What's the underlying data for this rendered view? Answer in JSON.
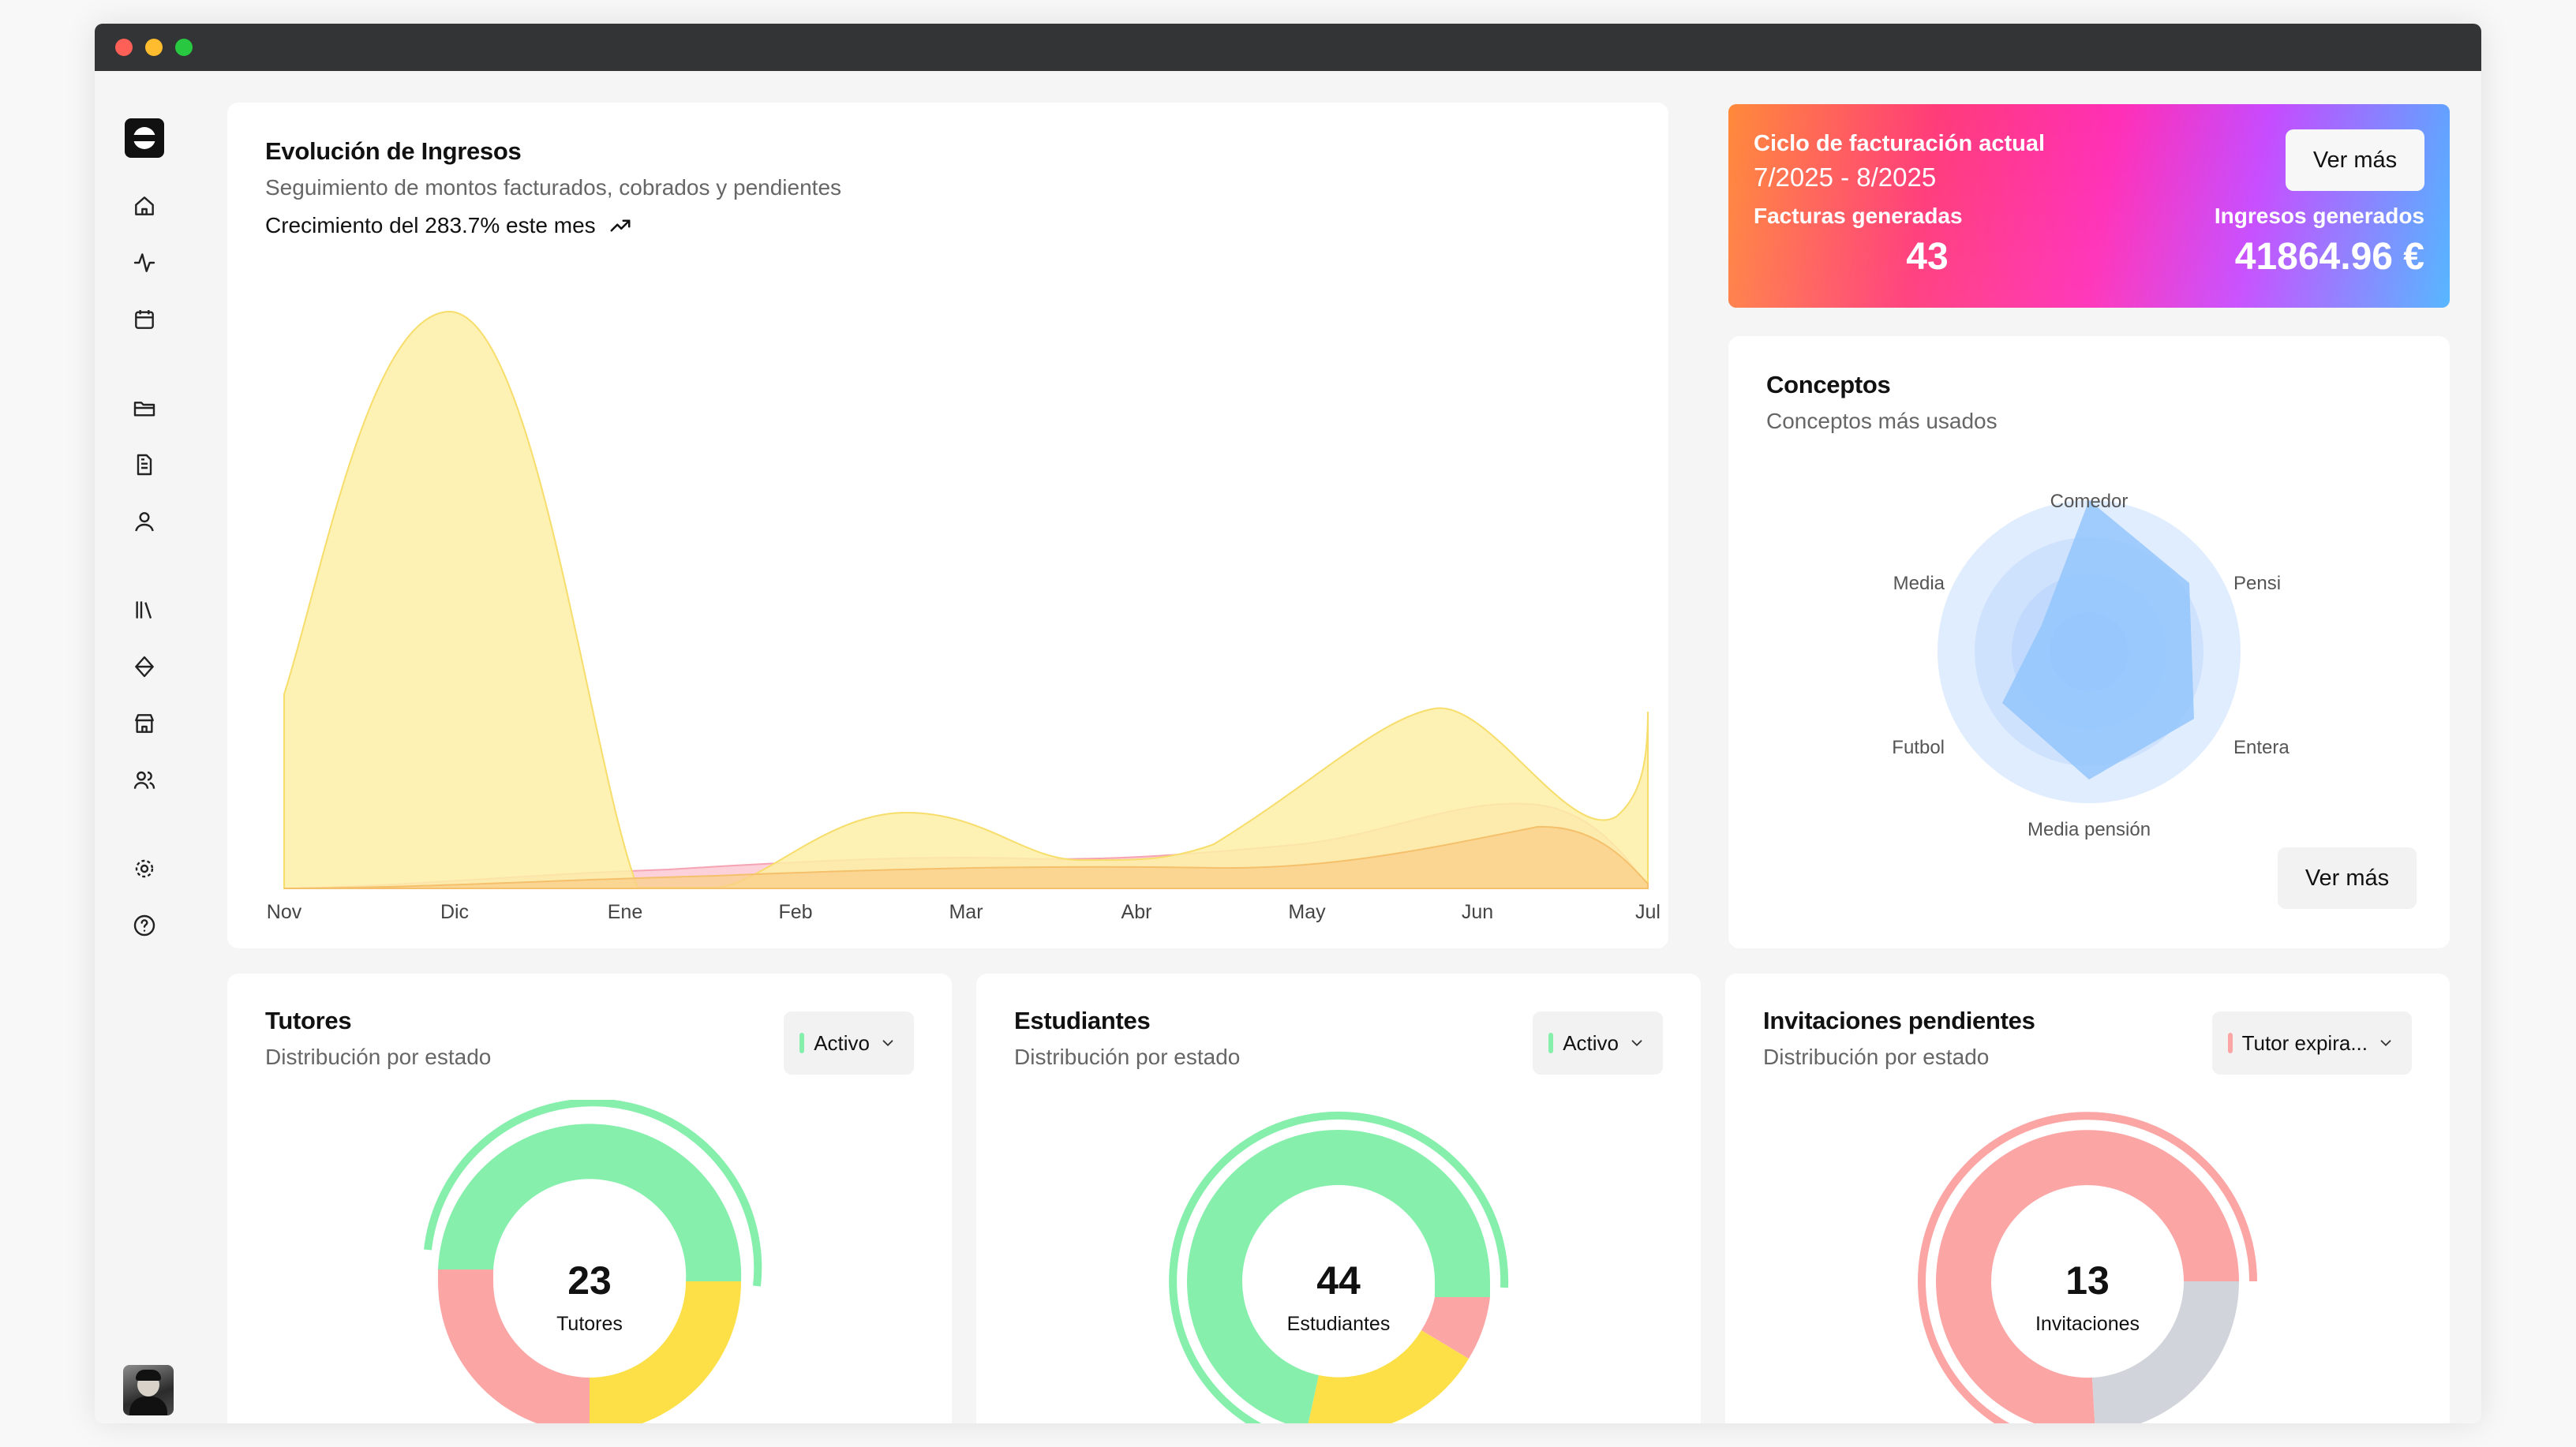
{
  "sidebar": {
    "icons": [
      "home-icon",
      "activity-icon",
      "calendar-icon",
      "folder-icon",
      "file-text-icon",
      "user-icon",
      "library-icon",
      "tag-icon",
      "store-icon",
      "users-icon",
      "settings-icon",
      "help-icon"
    ]
  },
  "revenue": {
    "title": "Evolución de Ingresos",
    "subtitle": "Seguimiento de montos facturados, cobrados y pendientes",
    "growth": "Crecimiento del 283.7% este mes",
    "months": [
      "Nov",
      "Dic",
      "Ene",
      "Feb",
      "Mar",
      "Abr",
      "May",
      "Jun",
      "Jul"
    ]
  },
  "billing": {
    "title": "Ciclo de facturación actual",
    "period": "7/2025 - 8/2025",
    "invoices_label": "Facturas generadas",
    "invoices_value": "43",
    "income_label": "Ingresos generados",
    "income_value": "41864.96 €",
    "button": "Ver más"
  },
  "concepts": {
    "title": "Conceptos",
    "subtitle": "Conceptos más usados",
    "labels": {
      "top": "Comedor",
      "top_right": "Pensi",
      "bottom_right": "Entera",
      "bottom": "Media pensión",
      "bottom_left": "Futbol",
      "top_left": "Media"
    },
    "button": "Ver más"
  },
  "tutors": {
    "title": "Tutores",
    "subtitle": "Distribución por estado",
    "filter": "Activo",
    "count": "23",
    "label": "Tutores"
  },
  "students": {
    "title": "Estudiantes",
    "subtitle": "Distribución por estado",
    "filter": "Activo",
    "count": "44",
    "label": "Estudiantes"
  },
  "invitations": {
    "title": "Invitaciones pendientes",
    "subtitle": "Distribución por estado",
    "filter": "Tutor expira...",
    "count": "13",
    "label": "Invitaciones"
  },
  "colors": {
    "yellow_area": "#fdf0a6",
    "pink_area": "#fbc6d0",
    "green": "#86efac",
    "red": "#fca5a5",
    "gold": "#fde047",
    "gray": "#d1d5db",
    "radar_blue": "#93c5fd"
  }
}
